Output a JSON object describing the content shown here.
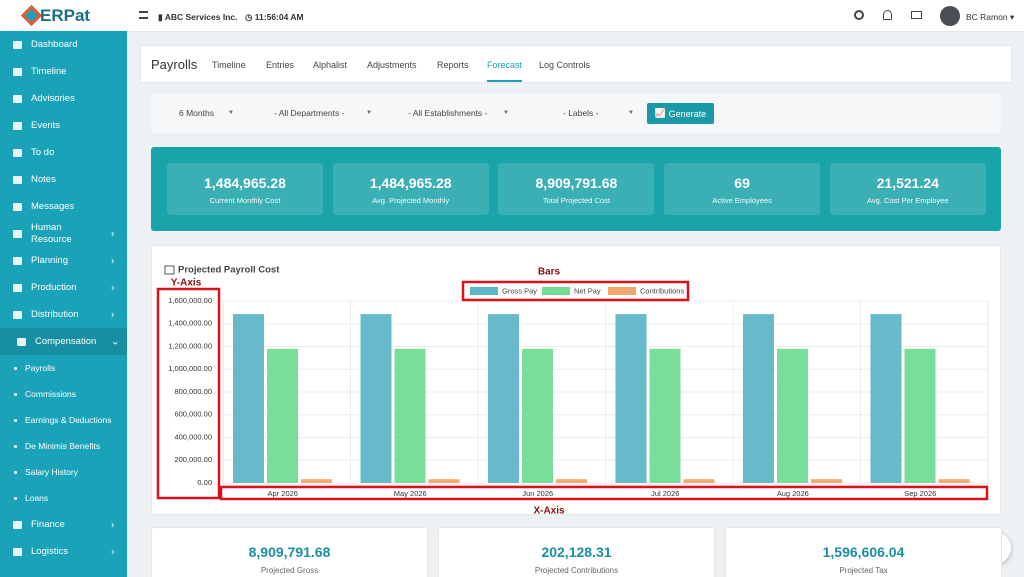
{
  "topbar": {
    "brand": "ERPat",
    "company": "ABC Services Inc.",
    "time": "11:56:04 AM",
    "user": "BC Ramon"
  },
  "sidebar": {
    "items": [
      {
        "label": "Dashboard"
      },
      {
        "label": "Timeline"
      },
      {
        "label": "Advisories"
      },
      {
        "label": "Events"
      },
      {
        "label": "To do"
      },
      {
        "label": "Notes"
      },
      {
        "label": "Messages"
      },
      {
        "label": "Human Resource",
        "submenu": true
      },
      {
        "label": "Planning",
        "submenu": true
      },
      {
        "label": "Production",
        "submenu": true
      },
      {
        "label": "Distribution",
        "submenu": true
      },
      {
        "label": "Compensation",
        "submenu": true,
        "active": true,
        "children": [
          "Payrolls",
          "Commissions",
          "Earnings & Deductions",
          "De Minimis Benefits",
          "Salary History",
          "Loans"
        ]
      },
      {
        "label": "Finance",
        "submenu": true
      },
      {
        "label": "Logistics",
        "submenu": true
      }
    ]
  },
  "page": {
    "title": "Payrolls",
    "tabs": [
      "Timeline",
      "Entries",
      "Alphalist",
      "Adjustments",
      "Reports",
      "Forecast",
      "Log Controls"
    ],
    "active_tab": 5
  },
  "filters": {
    "selects": [
      "6 Months",
      "- All Departments -",
      "- All Establishments -",
      "- Labels -"
    ],
    "button": "Generate"
  },
  "stats": [
    {
      "value": "1,484,965.28",
      "label": "Current Monthly Cost"
    },
    {
      "value": "1,484,965.28",
      "label": "Avg. Projected Monthly"
    },
    {
      "value": "8,909,791.68",
      "label": "Total Projected Cost"
    },
    {
      "value": "69",
      "label": "Active Employees"
    },
    {
      "value": "21,521.24",
      "label": "Avg. Cost Per Employee"
    }
  ],
  "chart_data": {
    "type": "bar",
    "title": "Projected Payroll Cost",
    "annotations": {
      "bars": "Bars",
      "y_axis": "Y-Axis",
      "x_axis": "X-Axis"
    },
    "categories": [
      "Apr 2026",
      "May 2026",
      "Jun 2026",
      "Jul 2026",
      "Aug 2026",
      "Sep 2026"
    ],
    "series": [
      {
        "name": "Gross Pay",
        "color": "#5fb6c6",
        "values": [
          1484965.28,
          1484965.28,
          1484965.28,
          1484965.28,
          1484965.28,
          1484965.28
        ]
      },
      {
        "name": "Net Pay",
        "color": "#72dc95",
        "values": [
          1180000,
          1180000,
          1180000,
          1180000,
          1180000,
          1180000
        ]
      },
      {
        "name": "Contributions",
        "color": "#f2a66b",
        "values": [
          33688.05,
          33688.05,
          33688.05,
          33688.05,
          33688.05,
          33688.05
        ]
      }
    ],
    "ylim": [
      0,
      1600000
    ],
    "yticks": [
      {
        "value": 0,
        "label": "0.00"
      },
      {
        "value": 200000,
        "label": "200,000.00"
      },
      {
        "value": 400000,
        "label": "400,000.00"
      },
      {
        "value": 600000,
        "label": "600,000.00"
      },
      {
        "value": 800000,
        "label": "800,000.00"
      },
      {
        "value": 1000000,
        "label": "1,000,000.00"
      },
      {
        "value": 1200000,
        "label": "1,200,000.00"
      },
      {
        "value": 1400000,
        "label": "1,400,000.00"
      },
      {
        "value": 1600000,
        "label": "1,600,000.00"
      }
    ],
    "grid": true,
    "legend": "top"
  },
  "totals": [
    {
      "value": "8,909,791.68",
      "label": "Projected Gross"
    },
    {
      "value": "202,128.31",
      "label": "Projected Contributions"
    },
    {
      "value": "1,596,606.04",
      "label": "Projected Tax"
    }
  ]
}
